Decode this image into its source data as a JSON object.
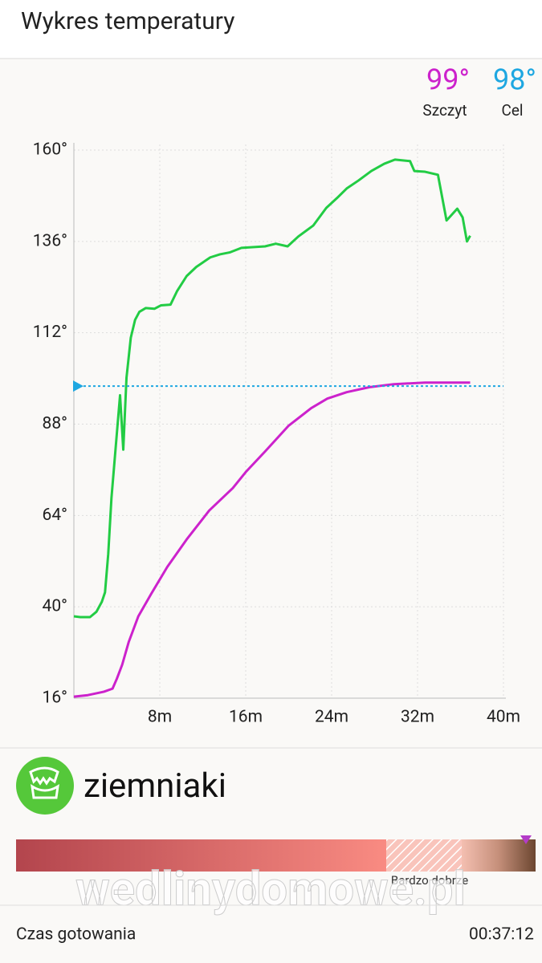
{
  "header": {
    "title": "Wykres temperatury"
  },
  "readouts": {
    "peak": {
      "label": "99°",
      "name": "Szczyt"
    },
    "target": {
      "label": "98°",
      "name": "Cel"
    }
  },
  "chart_data": {
    "type": "line",
    "xlim": [
      0,
      40
    ],
    "ylim": [
      16,
      160
    ],
    "xticks": [
      {
        "value": 8,
        "label": "8m"
      },
      {
        "value": 16,
        "label": "16m"
      },
      {
        "value": 24,
        "label": "24m"
      },
      {
        "value": 32,
        "label": "32m"
      },
      {
        "value": 40,
        "label": "40m"
      }
    ],
    "yticks": [
      {
        "value": 16,
        "label": "16°"
      },
      {
        "value": 40,
        "label": "40°"
      },
      {
        "value": 64,
        "label": "64°"
      },
      {
        "value": 88,
        "label": "88°"
      },
      {
        "value": 112,
        "label": "112°"
      },
      {
        "value": 136,
        "label": "136°"
      },
      {
        "value": 160,
        "label": "160°"
      }
    ],
    "grid": true,
    "target": {
      "value": 98,
      "color": "#1ea7e1"
    },
    "series": [
      {
        "color": "#22cc44",
        "x": [
          0,
          0.6,
          1.5,
          2.1,
          2.6,
          2.9,
          3.2,
          3.5,
          4.0,
          4.3,
          4.6,
          4.9,
          5.3,
          5.7,
          6.1,
          6.7,
          7.5,
          8.1,
          9.0,
          9.6,
          10.5,
          11.4,
          12.7,
          13.6,
          14.5,
          15.6,
          17.8,
          18.8,
          19.9,
          20.9,
          22.3,
          23.5,
          24.5,
          25.4,
          26.5,
          27.7,
          28.9,
          29.9,
          31.3,
          31.7,
          32.7,
          33.9,
          34.7,
          35.7,
          36.2,
          36.6,
          36.9
        ],
        "values": [
          37.5,
          37.3,
          37.3,
          38.7,
          41.3,
          43.8,
          53.9,
          68.6,
          85.5,
          95.6,
          81.3,
          100.2,
          110.7,
          115.4,
          117.5,
          118.5,
          118.3,
          119.2,
          119.4,
          122.9,
          126.9,
          129.3,
          131.8,
          132.6,
          133.1,
          134.3,
          134.7,
          135.4,
          134.7,
          137.3,
          140.2,
          144.8,
          147.4,
          149.9,
          152.0,
          154.5,
          156.4,
          157.5,
          157.1,
          154.5,
          154.3,
          153.5,
          141.5,
          144.6,
          142.3,
          136.0,
          137.5
        ]
      },
      {
        "color": "#cc22cc",
        "x": [
          0,
          1.3,
          2.8,
          3.6,
          4.0,
          4.5,
          5.1,
          6.0,
          7.2,
          8.7,
          10.5,
          12.6,
          14.8,
          16.0,
          17.8,
          20.0,
          22.1,
          23.6,
          25.4,
          27.5,
          29.8,
          32.7,
          35.7,
          36.9
        ],
        "values": [
          16.4,
          16.8,
          17.7,
          18.5,
          21.1,
          24.8,
          30.7,
          37.5,
          43.4,
          50.5,
          57.7,
          65.3,
          71.2,
          75.4,
          80.8,
          87.6,
          92.2,
          94.7,
          96.4,
          97.7,
          98.5,
          98.9,
          98.9,
          98.9
        ]
      }
    ]
  },
  "food": {
    "name": "ziemniaki",
    "doneness": "Bardzo dobrze"
  },
  "watermark": "wedlinydomowe.pl",
  "footer": {
    "label": "Czas gotowania",
    "time": "00:37:12"
  }
}
